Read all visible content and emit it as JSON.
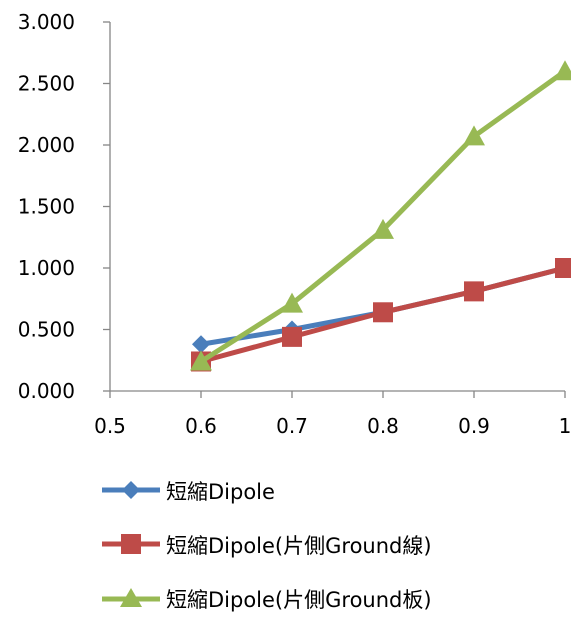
{
  "chart_data": {
    "type": "line",
    "title": "",
    "xlabel": "",
    "ylabel": "",
    "xlim": [
      0.5,
      1
    ],
    "ylim": [
      0,
      3
    ],
    "x_ticks": [
      "0.5",
      "0.6",
      "0.7",
      "0.8",
      "0.9",
      "1"
    ],
    "y_ticks": [
      "0.000",
      "0.500",
      "1.000",
      "1.500",
      "2.000",
      "2.500",
      "3.000"
    ],
    "x_tick_values": [
      0.5,
      0.6,
      0.7,
      0.8,
      0.9,
      1.0
    ],
    "y_tick_values": [
      0,
      0.5,
      1,
      1.5,
      2,
      2.5,
      3
    ],
    "grid": false,
    "legend_position": "bottom",
    "series": [
      {
        "name": "短縮Dipole",
        "color": "#4a7ebb",
        "marker": "diamond",
        "x": [
          0.6,
          0.7,
          0.8,
          0.9,
          1.0
        ],
        "y": [
          0.38,
          0.5,
          0.64,
          0.81,
          1.0
        ]
      },
      {
        "name": "短縮Dipole(片側Ground線)",
        "color": "#be4b48",
        "marker": "square",
        "x": [
          0.6,
          0.7,
          0.8,
          0.9,
          1.0
        ],
        "y": [
          0.24,
          0.44,
          0.64,
          0.81,
          1.0
        ]
      },
      {
        "name": "短縮Dipole(片側Ground板)",
        "color": "#98b954",
        "marker": "triangle",
        "x": [
          0.6,
          0.7,
          0.8,
          0.9,
          1.0
        ],
        "y": [
          0.24,
          0.71,
          1.31,
          2.07,
          2.6
        ]
      }
    ]
  }
}
